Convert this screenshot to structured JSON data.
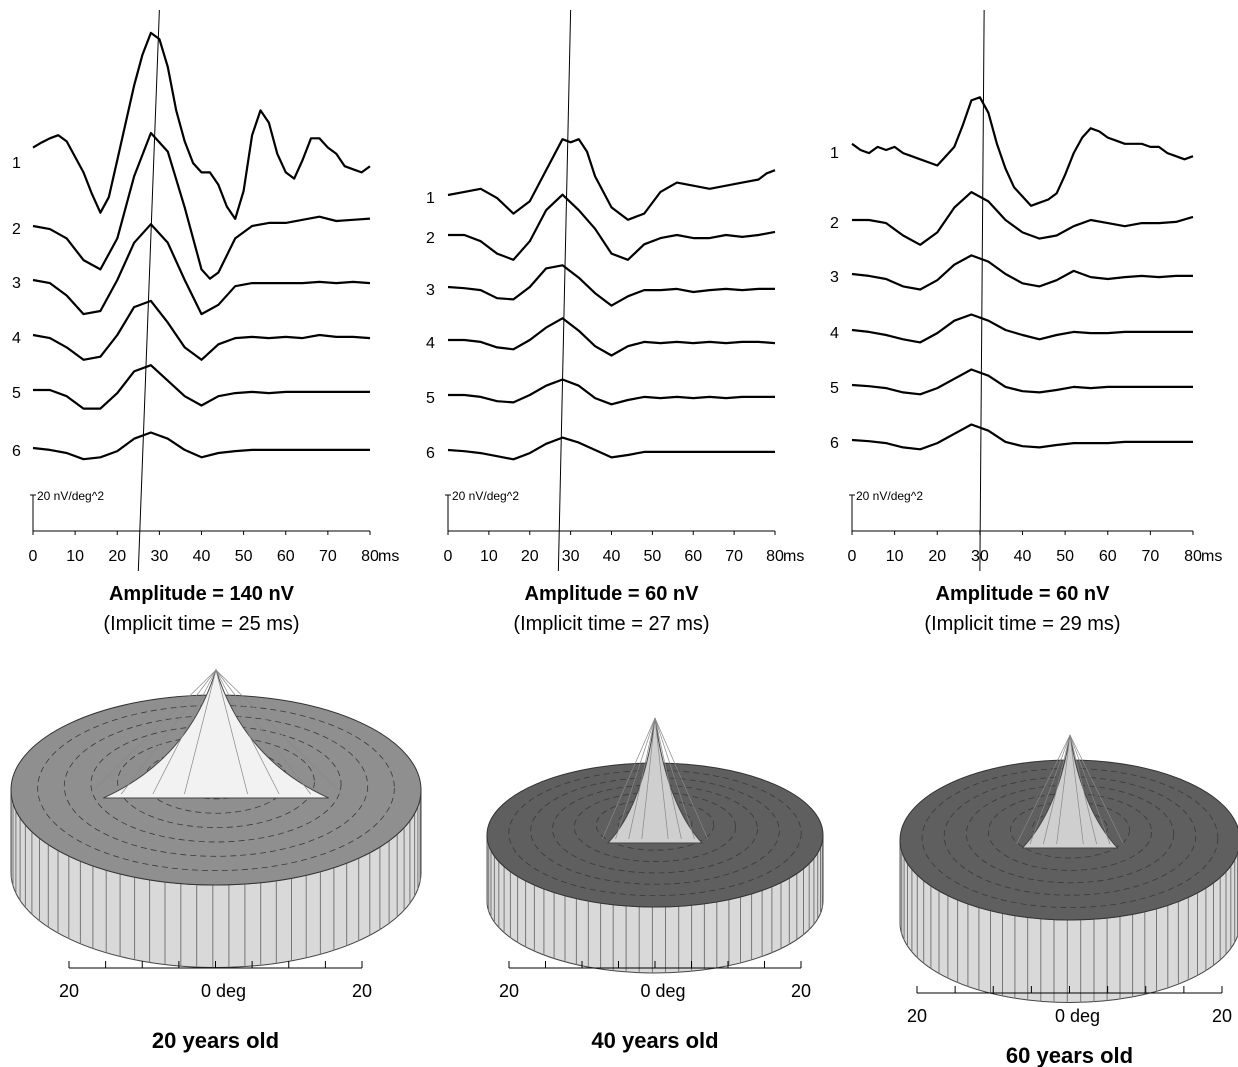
{
  "chart_data": [
    {
      "type": "line",
      "x_unit": "ms",
      "xlim": [
        0,
        80
      ],
      "x_ticks": [
        "0",
        "10",
        "20",
        "30",
        "40",
        "50",
        "60",
        "70",
        "80"
      ],
      "scale_label": "20 nV/deg^2",
      "ring_labels": [
        "1",
        "2",
        "3",
        "4",
        "5",
        "6"
      ],
      "title": "Amplitude = 140 nV",
      "subtitle": "(Implicit time = 25 ms)",
      "implicit_line_ms": [
        25,
        30
      ],
      "series": [
        {
          "x": [
            0,
            2,
            4,
            6,
            8,
            10,
            12,
            14,
            16,
            18,
            20,
            22,
            24,
            26,
            28,
            30,
            32,
            34,
            36,
            38,
            40,
            42,
            44,
            46,
            48,
            50,
            52,
            54,
            56,
            58,
            60,
            62,
            64,
            66,
            68,
            70,
            72,
            74,
            76,
            78,
            80
          ],
          "y": [
            20,
            28,
            35,
            40,
            30,
            5,
            -20,
            -55,
            -85,
            -60,
            0,
            60,
            120,
            170,
            205,
            195,
            150,
            80,
            30,
            -5,
            -20,
            -20,
            -40,
            -75,
            -95,
            -50,
            40,
            80,
            60,
            10,
            -20,
            -30,
            0,
            35,
            35,
            20,
            10,
            -10,
            -15,
            -20,
            -10
          ]
        },
        {
          "x": [
            0,
            4,
            8,
            12,
            16,
            20,
            24,
            28,
            32,
            36,
            40,
            42,
            44,
            48,
            52,
            56,
            60,
            64,
            68,
            72,
            76,
            80
          ],
          "y": [
            0,
            -5,
            -20,
            -55,
            -70,
            -20,
            80,
            150,
            120,
            30,
            -70,
            -85,
            -75,
            -20,
            0,
            5,
            5,
            10,
            15,
            8,
            10,
            12
          ]
        },
        {
          "x": [
            0,
            4,
            8,
            12,
            16,
            20,
            24,
            28,
            32,
            36,
            40,
            44,
            48,
            52,
            56,
            60,
            64,
            68,
            72,
            76,
            80
          ],
          "y": [
            0,
            -5,
            -25,
            -55,
            -50,
            0,
            60,
            90,
            60,
            0,
            -55,
            -40,
            -10,
            -5,
            -5,
            -5,
            -5,
            -3,
            -5,
            -3,
            -5
          ]
        },
        {
          "x": [
            0,
            4,
            8,
            12,
            16,
            20,
            24,
            28,
            32,
            36,
            40,
            44,
            48,
            52,
            56,
            60,
            64,
            68,
            72,
            76,
            80
          ],
          "y": [
            0,
            -5,
            -20,
            -40,
            -35,
            0,
            45,
            55,
            20,
            -20,
            -40,
            -15,
            -5,
            -3,
            -5,
            -3,
            -5,
            0,
            -3,
            -3,
            -5
          ]
        },
        {
          "x": [
            0,
            4,
            8,
            12,
            16,
            20,
            24,
            28,
            32,
            36,
            40,
            44,
            48,
            52,
            56,
            60,
            64,
            68,
            72,
            76,
            80
          ],
          "y": [
            0,
            0,
            -10,
            -30,
            -30,
            -5,
            30,
            40,
            15,
            -10,
            -25,
            -10,
            -5,
            -3,
            -5,
            -3,
            -3,
            -3,
            -3,
            -3,
            -3
          ]
        },
        {
          "x": [
            0,
            4,
            8,
            12,
            16,
            20,
            24,
            28,
            32,
            36,
            40,
            44,
            48,
            52,
            56,
            60,
            64,
            68,
            72,
            76,
            80
          ],
          "y": [
            0,
            -3,
            -8,
            -18,
            -15,
            -5,
            15,
            25,
            15,
            -3,
            -15,
            -8,
            -5,
            -3,
            -3,
            -3,
            -3,
            -3,
            -3,
            -3,
            -3
          ]
        }
      ],
      "surface_axis": {
        "left": "20",
        "center": "0 deg",
        "right": "20"
      },
      "caption": "20 years old"
    },
    {
      "type": "line",
      "x_unit": "ms",
      "xlim": [
        0,
        80
      ],
      "x_ticks": [
        "0",
        "10",
        "20",
        "30",
        "40",
        "50",
        "60",
        "70",
        "80"
      ],
      "scale_label": "20 nV/deg^2",
      "ring_labels": [
        "1",
        "2",
        "3",
        "4",
        "5",
        "6"
      ],
      "title": "Amplitude = 60 nV",
      "subtitle": "(Implicit time = 27 ms)",
      "implicit_line_ms": [
        27,
        30
      ],
      "series": [
        {
          "x": [
            0,
            4,
            8,
            12,
            16,
            20,
            24,
            28,
            30,
            32,
            34,
            36,
            40,
            44,
            48,
            52,
            56,
            60,
            64,
            68,
            72,
            76,
            78,
            80
          ],
          "y": [
            0,
            5,
            10,
            -5,
            -30,
            -10,
            40,
            90,
            85,
            90,
            70,
            30,
            -20,
            -40,
            -30,
            5,
            20,
            15,
            10,
            15,
            20,
            25,
            35,
            40
          ]
        },
        {
          "x": [
            0,
            4,
            8,
            12,
            16,
            20,
            24,
            28,
            32,
            36,
            40,
            44,
            48,
            52,
            56,
            60,
            64,
            68,
            72,
            76,
            80
          ],
          "y": [
            0,
            0,
            -10,
            -30,
            -40,
            -10,
            40,
            65,
            40,
            10,
            -30,
            -40,
            -15,
            -5,
            0,
            -5,
            -5,
            0,
            -3,
            0,
            5
          ]
        },
        {
          "x": [
            0,
            4,
            8,
            12,
            16,
            20,
            24,
            28,
            32,
            36,
            40,
            44,
            48,
            52,
            56,
            60,
            64,
            68,
            72,
            76,
            80
          ],
          "y": [
            0,
            -2,
            -5,
            -18,
            -20,
            0,
            30,
            35,
            15,
            -10,
            -30,
            -15,
            -5,
            -5,
            -3,
            -8,
            -5,
            -3,
            -5,
            -3,
            -3
          ]
        },
        {
          "x": [
            0,
            4,
            8,
            12,
            16,
            20,
            24,
            28,
            32,
            36,
            40,
            44,
            48,
            52,
            56,
            60,
            64,
            68,
            72,
            76,
            80
          ],
          "y": [
            0,
            0,
            -3,
            -12,
            -15,
            0,
            20,
            35,
            15,
            -10,
            -25,
            -10,
            -3,
            -5,
            -3,
            -5,
            -3,
            -5,
            -3,
            -3,
            -5
          ]
        },
        {
          "x": [
            0,
            4,
            8,
            12,
            16,
            20,
            24,
            28,
            32,
            36,
            40,
            44,
            48,
            52,
            56,
            60,
            64,
            68,
            72,
            76,
            80
          ],
          "y": [
            0,
            0,
            -3,
            -10,
            -12,
            0,
            15,
            25,
            15,
            -5,
            -15,
            -8,
            -3,
            -5,
            -3,
            -5,
            -3,
            -5,
            -3,
            -3,
            -3
          ]
        },
        {
          "x": [
            0,
            4,
            8,
            12,
            16,
            20,
            24,
            28,
            32,
            36,
            40,
            44,
            48,
            52,
            56,
            60,
            64,
            68,
            72,
            76,
            80
          ],
          "y": [
            0,
            -2,
            -5,
            -10,
            -15,
            -5,
            10,
            20,
            12,
            0,
            -12,
            -8,
            -3,
            -3,
            -3,
            -3,
            -3,
            -3,
            -3,
            -3,
            -3
          ]
        }
      ],
      "surface_axis": {
        "left": "20",
        "center": "0 deg",
        "right": "20"
      },
      "caption": "40 years old"
    },
    {
      "type": "line",
      "x_unit": "ms",
      "xlim": [
        0,
        80
      ],
      "x_ticks": [
        "0",
        "10",
        "20",
        "30",
        "40",
        "50",
        "60",
        "70",
        "80"
      ],
      "scale_label": "20 nV/deg^2",
      "ring_labels": [
        "1",
        "2",
        "3",
        "4",
        "5",
        "6"
      ],
      "title": "Amplitude = 60 nV",
      "subtitle": "(Implicit time = 29 ms)",
      "implicit_line_ms": [
        30,
        31
      ],
      "series": [
        {
          "x": [
            0,
            2,
            4,
            6,
            8,
            10,
            12,
            14,
            16,
            18,
            20,
            22,
            24,
            26,
            28,
            30,
            32,
            34,
            36,
            38,
            40,
            42,
            44,
            46,
            48,
            50,
            52,
            54,
            56,
            58,
            60,
            62,
            64,
            66,
            68,
            70,
            72,
            74,
            76,
            78,
            80
          ],
          "y": [
            10,
            0,
            -5,
            5,
            0,
            5,
            -5,
            -10,
            -15,
            -20,
            -25,
            -10,
            5,
            40,
            80,
            85,
            60,
            10,
            -30,
            -60,
            -75,
            -90,
            -85,
            -80,
            -70,
            -40,
            -5,
            20,
            35,
            30,
            20,
            15,
            10,
            10,
            10,
            5,
            5,
            -5,
            -10,
            -15,
            -10
          ]
        },
        {
          "x": [
            0,
            4,
            8,
            12,
            16,
            20,
            24,
            28,
            32,
            36,
            40,
            44,
            48,
            52,
            56,
            60,
            64,
            68,
            72,
            76,
            80
          ],
          "y": [
            0,
            0,
            -5,
            -25,
            -40,
            -20,
            20,
            45,
            30,
            0,
            -20,
            -30,
            -25,
            -10,
            0,
            -5,
            -10,
            -5,
            -5,
            -3,
            5
          ]
        },
        {
          "x": [
            0,
            4,
            8,
            12,
            16,
            20,
            24,
            28,
            32,
            36,
            40,
            44,
            48,
            52,
            56,
            60,
            64,
            68,
            72,
            76,
            80
          ],
          "y": [
            0,
            -3,
            -8,
            -20,
            -25,
            -10,
            15,
            30,
            20,
            0,
            -15,
            -20,
            -10,
            5,
            -5,
            -8,
            -5,
            -3,
            -5,
            -3,
            -3
          ]
        },
        {
          "x": [
            0,
            4,
            8,
            12,
            16,
            20,
            24,
            28,
            32,
            36,
            40,
            44,
            48,
            52,
            56,
            60,
            64,
            68,
            72,
            76,
            80
          ],
          "y": [
            0,
            -3,
            -8,
            -15,
            -20,
            -5,
            15,
            25,
            15,
            0,
            -8,
            -15,
            -8,
            -3,
            -5,
            -5,
            -3,
            -3,
            -3,
            -3,
            -3
          ]
        },
        {
          "x": [
            0,
            4,
            8,
            12,
            16,
            20,
            24,
            28,
            32,
            36,
            40,
            44,
            48,
            52,
            56,
            60,
            64,
            68,
            72,
            76,
            80
          ],
          "y": [
            0,
            -2,
            -5,
            -12,
            -15,
            -5,
            10,
            25,
            15,
            -3,
            -10,
            -12,
            -8,
            -3,
            -5,
            -3,
            -3,
            -3,
            -3,
            -3,
            -3
          ]
        },
        {
          "x": [
            0,
            4,
            8,
            12,
            16,
            20,
            24,
            28,
            32,
            36,
            40,
            44,
            48,
            52,
            56,
            60,
            64,
            68,
            72,
            76,
            80
          ],
          "y": [
            0,
            -2,
            -5,
            -12,
            -15,
            -5,
            10,
            25,
            15,
            -3,
            -10,
            -12,
            -8,
            -5,
            -5,
            -5,
            -3,
            -3,
            -3,
            -3,
            -3
          ]
        }
      ],
      "surface_axis": {
        "left": "20",
        "center": "0 deg",
        "right": "20"
      },
      "caption": "60 years old"
    }
  ]
}
